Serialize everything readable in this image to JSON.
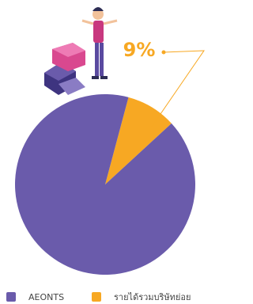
{
  "chart_data": {
    "type": "pie",
    "series": [
      {
        "name": "AEONTS",
        "color": "#6a5bab",
        "values": [
          91
        ]
      },
      {
        "name": "รายได้รวมบริษัทย่อย",
        "color": "#f7a823",
        "values": [
          9
        ],
        "value_labels": [
          "9%"
        ]
      }
    ]
  }
}
